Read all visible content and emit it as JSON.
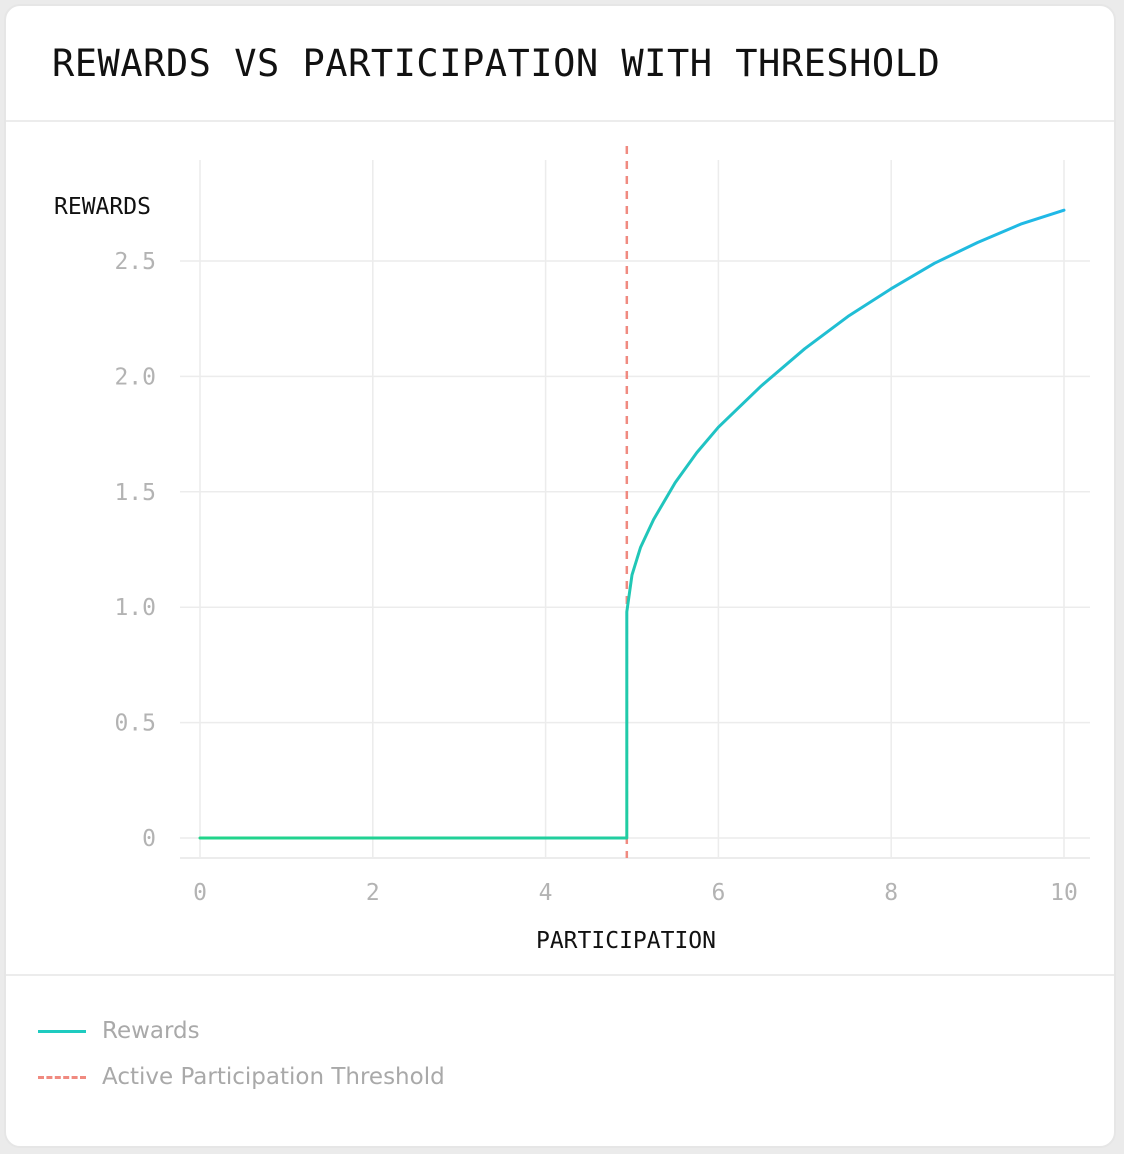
{
  "title": "REWARDS VS PARTICIPATION WITH THRESHOLD",
  "colors": {
    "rewards_start": "#21d48a",
    "rewards_end": "#20b8e8",
    "threshold": "#f08a80",
    "grid": "#ececec"
  },
  "legend": {
    "items": [
      {
        "label": "Rewards",
        "style": "solid"
      },
      {
        "label": "Active Participation Threshold",
        "style": "dashed"
      }
    ]
  },
  "chart_data": {
    "type": "line",
    "title": "REWARDS VS PARTICIPATION WITH THRESHOLD",
    "xlabel": "PARTICIPATION",
    "ylabel": "REWARDS",
    "xlim": [
      0,
      10
    ],
    "ylim": [
      0,
      2.8
    ],
    "x_ticks": [
      0,
      2,
      4,
      6,
      8,
      10
    ],
    "x_tick_labels": [
      "0",
      "2",
      "4",
      "6",
      "8",
      "10"
    ],
    "y_ticks": [
      0,
      0.5,
      1.0,
      1.5,
      2.0,
      2.5
    ],
    "y_tick_labels": [
      "0",
      "0.5",
      "1.0",
      "1.5",
      "2.0",
      "2.5"
    ],
    "grid": true,
    "legend_position": "bottom",
    "series": [
      {
        "name": "Rewards",
        "style": "solid",
        "x": [
          0,
          4.94,
          4.94,
          5.0,
          5.1,
          5.25,
          5.5,
          5.75,
          6.0,
          6.5,
          7.0,
          7.5,
          8.0,
          8.5,
          9.0,
          9.5,
          10.0
        ],
        "y": [
          0,
          0,
          0.98,
          1.14,
          1.26,
          1.38,
          1.54,
          1.67,
          1.78,
          1.96,
          2.12,
          2.26,
          2.38,
          2.49,
          2.58,
          2.66,
          2.72
        ]
      },
      {
        "name": "Active Participation Threshold",
        "style": "dashed",
        "x": [
          4.94,
          4.94
        ],
        "y": [
          0,
          2.8
        ]
      }
    ]
  }
}
